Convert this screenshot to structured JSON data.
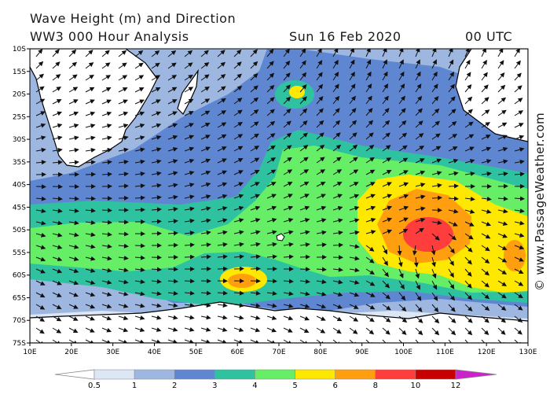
{
  "header": {
    "title": "Wave Height (m) and Direction",
    "subtitle": "WW3 000 Hour Analysis",
    "date": "Sun 16 Feb 2020",
    "time": "00 UTC"
  },
  "credit": "© www.PassageWeather.com",
  "map": {
    "lat_labels": [
      "10S",
      "15S",
      "20S",
      "25S",
      "30S",
      "35S",
      "40S",
      "45S",
      "50S",
      "55S",
      "60S",
      "65S",
      "70S",
      "75S"
    ],
    "lon_labels": [
      "10E",
      "20E",
      "30E",
      "40E",
      "50E",
      "60E",
      "70E",
      "80E",
      "90E",
      "100E",
      "110E",
      "120E",
      "130E"
    ],
    "colors": {
      "land": "#ffffff",
      "ice": "#ffffff",
      "coast": "#000000",
      "arrows": "#111111"
    }
  },
  "legend": {
    "tick_labels": [
      "0.5",
      "1",
      "2",
      "3",
      "4",
      "5",
      "6",
      "8",
      "10",
      "12"
    ],
    "colors": [
      "#ffffff",
      "#dce6f4",
      "#9db7e0",
      "#5f86d1",
      "#2fc2a0",
      "#66ef66",
      "#ffe800",
      "#ff9f10",
      "#ff3d3d",
      "#c80000",
      "#cc22cc"
    ]
  }
}
